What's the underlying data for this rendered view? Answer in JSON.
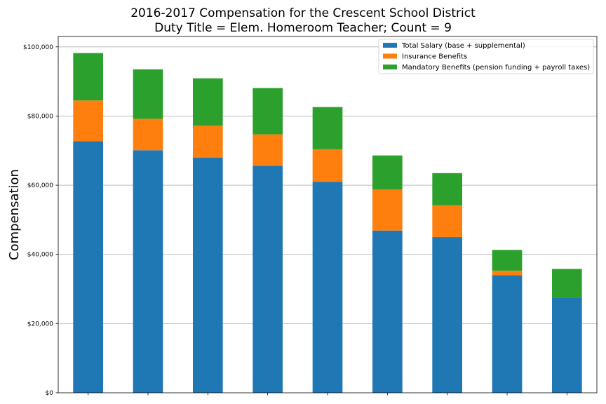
{
  "chart_data": {
    "type": "bar",
    "stacked": true,
    "title_lines": [
      "2016-2017 Compensation for the Crescent School District",
      "Duty Title = Elem. Homeroom Teacher; Count = 9"
    ],
    "xlabel": "",
    "ylabel": "Compensation",
    "ylim": [
      0,
      103000
    ],
    "y_ticks": [
      0,
      20000,
      40000,
      60000,
      80000,
      100000
    ],
    "y_tick_labels": [
      "$0",
      "$20,000",
      "$40,000",
      "$60,000",
      "$80,000",
      "$100,000"
    ],
    "categories": [
      "1",
      "2",
      "3",
      "4",
      "5",
      "6",
      "7",
      "8",
      "9"
    ],
    "show_x_tick_labels": false,
    "grid": "y",
    "legend_position": "top-right",
    "series": [
      {
        "name": "Total Salary (base + supplemental)",
        "color": "#1f77b4",
        "values": [
          72700,
          70100,
          68000,
          65600,
          61000,
          46900,
          45000,
          34000,
          27500
        ]
      },
      {
        "name": "Insurance Benefits",
        "color": "#ff7f0e",
        "values": [
          11800,
          9100,
          9200,
          9100,
          9400,
          11900,
          9200,
          1300,
          0
        ]
      },
      {
        "name": "Mandatory Benefits (pension funding + payroll taxes)",
        "color": "#2ca02c",
        "values": [
          13700,
          14300,
          13700,
          13400,
          12200,
          9800,
          9300,
          6000,
          8300
        ]
      }
    ]
  }
}
